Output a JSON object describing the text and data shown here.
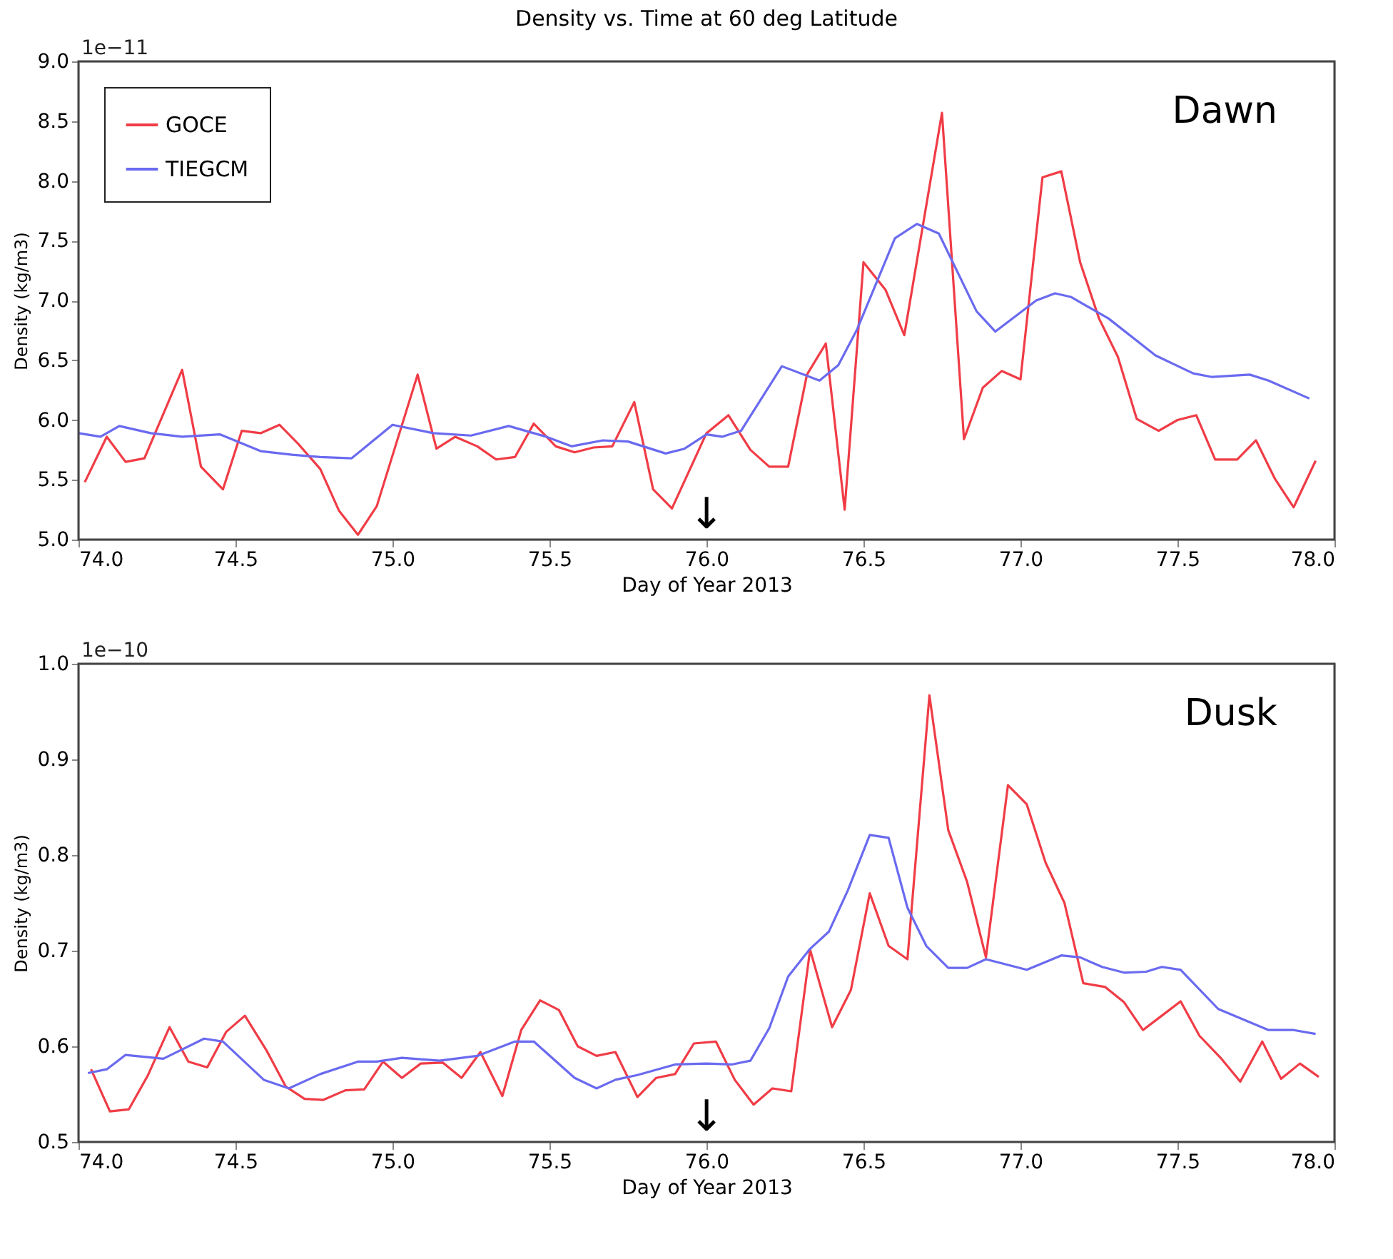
{
  "chart_data": [
    {
      "type": "line",
      "title": "Density vs. Time at 60 deg  Latitude",
      "xlabel": "Day of Year 2013",
      "ylabel": "Density (kg/m3)",
      "xlim": [
        74.0,
        78.0
      ],
      "xticks": [
        {
          "value": 74,
          "label": "74.0"
        },
        74.5,
        {
          "value": 75,
          "label": "75.0"
        },
        75.5,
        {
          "value": 76,
          "label": "76.0"
        },
        76.5,
        {
          "value": 77,
          "label": "77.0"
        },
        77.5,
        {
          "value": 78,
          "label": "78.0"
        }
      ],
      "ylim": [
        5.0,
        9.0
      ],
      "yticks": [
        {
          "value": 5,
          "label": "5.0"
        },
        5.5,
        {
          "value": 6,
          "label": "6.0"
        },
        6.5,
        {
          "value": 7,
          "label": "7.0"
        },
        7.5,
        {
          "value": 8,
          "label": "8.0"
        },
        8.5,
        {
          "value": 9,
          "label": "9.0"
        }
      ],
      "grid": false,
      "legend": "top left",
      "annotations": [
        "1e−11",
        "Dawn",
        "↓"
      ],
      "series": [
        {
          "name": "GOCE",
          "color": "#f03c46",
          "x": [
            74.02,
            74.09,
            74.15,
            74.21,
            74.33,
            74.39,
            74.46,
            74.52,
            74.58,
            74.64,
            74.7,
            74.77,
            74.83,
            74.89,
            74.95,
            75.08,
            75.14,
            75.2,
            75.27,
            75.33,
            75.39,
            75.45,
            75.52,
            75.58,
            75.64,
            75.7,
            75.77,
            75.83,
            75.89,
            76.0,
            76.07,
            76.14,
            76.2,
            76.26,
            76.32,
            76.38,
            76.44,
            76.5,
            76.57,
            76.63,
            76.75,
            76.82,
            76.88,
            76.94,
            77.0,
            77.07,
            77.13,
            77.19,
            77.25,
            77.31,
            77.37,
            77.44,
            77.5,
            77.56,
            77.62,
            77.69,
            77.75,
            77.81,
            77.87,
            77.94
          ],
          "values": [
            5.48,
            5.86,
            5.65,
            5.68,
            6.42,
            5.61,
            5.42,
            5.91,
            5.89,
            5.96,
            5.8,
            5.59,
            5.24,
            5.04,
            5.28,
            6.38,
            5.76,
            5.86,
            5.78,
            5.67,
            5.69,
            5.97,
            5.78,
            5.73,
            5.77,
            5.78,
            6.15,
            5.42,
            5.26,
            5.89,
            6.04,
            5.75,
            5.61,
            5.61,
            6.38,
            6.64,
            5.25,
            7.32,
            7.09,
            6.71,
            8.57,
            5.84,
            6.27,
            6.41,
            6.34,
            8.03,
            8.08,
            7.32,
            6.85,
            6.53,
            6.01,
            5.91,
            6.0,
            6.04,
            5.67,
            5.67,
            5.83,
            5.51,
            5.27,
            5.66
          ]
        },
        {
          "name": "TIEGCM",
          "color": "#6a6af0",
          "x": [
            74.0,
            74.07,
            74.13,
            74.23,
            74.33,
            74.45,
            74.58,
            74.68,
            74.77,
            74.87,
            75.0,
            75.13,
            75.25,
            75.37,
            75.49,
            75.57,
            75.67,
            75.75,
            75.87,
            75.93,
            76.0,
            76.05,
            76.11,
            76.24,
            76.36,
            76.42,
            76.48,
            76.6,
            76.67,
            76.74,
            76.86,
            76.92,
            77.05,
            77.11,
            77.16,
            77.28,
            77.43,
            77.55,
            77.61,
            77.73,
            77.79,
            77.92
          ],
          "values": [
            5.89,
            5.86,
            5.95,
            5.89,
            5.86,
            5.88,
            5.74,
            5.71,
            5.69,
            5.68,
            5.96,
            5.89,
            5.87,
            5.95,
            5.86,
            5.78,
            5.83,
            5.82,
            5.72,
            5.76,
            5.88,
            5.86,
            5.91,
            6.45,
            6.33,
            6.46,
            6.76,
            7.52,
            7.64,
            7.56,
            6.91,
            6.74,
            7.0,
            7.06,
            7.03,
            6.85,
            6.54,
            6.39,
            6.36,
            6.38,
            6.33,
            6.18
          ]
        }
      ]
    },
    {
      "type": "line",
      "xlabel": "Day of Year 2013",
      "ylabel": "Density (kg/m3)",
      "xlim": [
        74.0,
        78.0
      ],
      "xticks": [
        {
          "value": 74,
          "label": "74.0"
        },
        74.5,
        {
          "value": 75,
          "label": "75.0"
        },
        75.5,
        {
          "value": 76,
          "label": "76.0"
        },
        76.5,
        {
          "value": 77,
          "label": "77.0"
        },
        77.5,
        {
          "value": 78,
          "label": "78.0"
        }
      ],
      "ylim": [
        0.5,
        1.0
      ],
      "yticks": [
        0.5,
        0.6,
        0.7,
        0.8,
        0.9,
        {
          "value": 1,
          "label": "1.0"
        }
      ],
      "grid": false,
      "legend": "top left",
      "annotations": [
        "1e−10",
        "Dusk",
        "↓"
      ],
      "series": [
        {
          "name": "GOCE",
          "color": "#f03c46",
          "x": [
            74.04,
            74.1,
            74.16,
            74.22,
            74.29,
            74.35,
            74.41,
            74.47,
            74.53,
            74.6,
            74.66,
            74.72,
            74.78,
            74.85,
            74.91,
            74.97,
            75.03,
            75.09,
            75.16,
            75.22,
            75.28,
            75.35,
            75.41,
            75.47,
            75.53,
            75.59,
            75.65,
            75.71,
            75.78,
            75.84,
            75.9,
            75.96,
            76.03,
            76.09,
            76.15,
            76.21,
            76.27,
            76.33,
            76.4,
            76.46,
            76.52,
            76.58,
            76.64,
            76.71,
            76.77,
            76.83,
            76.89,
            76.96,
            77.02,
            77.08,
            77.14,
            77.2,
            77.27,
            77.33,
            77.39,
            77.45,
            77.51,
            77.57,
            77.64,
            77.7,
            77.77,
            77.83,
            77.89,
            77.95
          ],
          "values": [
            0.576,
            0.532,
            0.534,
            0.569,
            0.62,
            0.584,
            0.578,
            0.615,
            0.632,
            0.595,
            0.558,
            0.545,
            0.544,
            0.554,
            0.555,
            0.584,
            0.567,
            0.582,
            0.583,
            0.567,
            0.594,
            0.548,
            0.617,
            0.648,
            0.638,
            0.6,
            0.59,
            0.594,
            0.547,
            0.567,
            0.571,
            0.603,
            0.605,
            0.565,
            0.539,
            0.556,
            0.553,
            0.701,
            0.62,
            0.659,
            0.76,
            0.705,
            0.691,
            0.967,
            0.826,
            0.772,
            0.693,
            0.873,
            0.853,
            0.792,
            0.75,
            0.666,
            0.662,
            0.646,
            0.617,
            0.632,
            0.647,
            0.611,
            0.587,
            0.563,
            0.605,
            0.566,
            0.582,
            0.568
          ]
        },
        {
          "name": "TIEGCM",
          "color": "#6a6af0",
          "x": [
            74.03,
            74.09,
            74.15,
            74.27,
            74.4,
            74.46,
            74.59,
            74.67,
            74.77,
            74.89,
            74.95,
            75.03,
            75.15,
            75.27,
            75.39,
            75.45,
            75.58,
            75.65,
            75.71,
            75.78,
            75.9,
            76.0,
            76.08,
            76.14,
            76.2,
            76.26,
            76.33,
            76.39,
            76.45,
            76.52,
            76.58,
            76.64,
            76.7,
            76.77,
            76.83,
            76.89,
            77.02,
            77.13,
            77.19,
            77.26,
            77.33,
            77.4,
            77.45,
            77.51,
            77.63,
            77.79,
            77.87,
            77.94
          ],
          "values": [
            0.572,
            0.576,
            0.591,
            0.587,
            0.608,
            0.605,
            0.565,
            0.556,
            0.571,
            0.584,
            0.584,
            0.588,
            0.585,
            0.59,
            0.605,
            0.605,
            0.567,
            0.556,
            0.565,
            0.57,
            0.581,
            0.582,
            0.581,
            0.585,
            0.619,
            0.673,
            0.702,
            0.72,
            0.763,
            0.821,
            0.818,
            0.745,
            0.705,
            0.682,
            0.682,
            0.691,
            0.68,
            0.695,
            0.693,
            0.683,
            0.677,
            0.678,
            0.683,
            0.68,
            0.639,
            0.617,
            0.617,
            0.613
          ]
        }
      ]
    }
  ]
}
